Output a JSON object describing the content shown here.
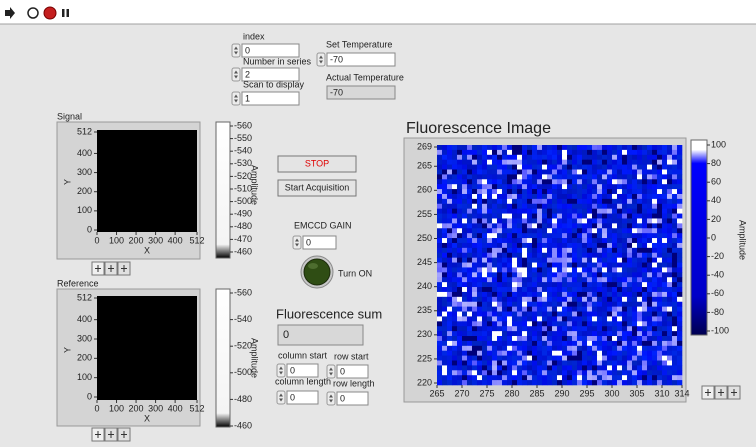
{
  "numeric_controls": [
    {
      "label": "index",
      "value": 0
    },
    {
      "label": "Number in series",
      "value": 2
    },
    {
      "label": "Scan to display",
      "value": 1
    },
    {
      "label": "Set Temperature",
      "value": -70
    },
    {
      "label": "Actual Temperature",
      "value": -70
    },
    {
      "label": "EMCCD GAIN",
      "value": 0
    },
    {
      "label": "column start",
      "value": 0
    },
    {
      "label": "row start",
      "value": 0
    },
    {
      "label": "column length",
      "value": 0
    },
    {
      "label": "row length",
      "value": 0
    }
  ],
  "fluorescence_sum": {
    "label": "Fluorescence sum",
    "value": 0
  },
  "buttons": [
    "STOP",
    "Start Acquisition"
  ],
  "led": {
    "label": "Turn ON"
  },
  "graphs": [
    {
      "label": "Signal",
      "x_label": "X",
      "y_label": "Y",
      "xlim": [
        0,
        512
      ],
      "ylim": [
        0,
        512
      ],
      "xticks": [
        0,
        100,
        200,
        300,
        400,
        512
      ],
      "yticks": [
        0,
        100,
        200,
        300,
        400,
        512
      ],
      "colorbar": {
        "label": "Amplitude",
        "lim": [
          -460,
          -560
        ],
        "ticks": [
          -560,
          -550,
          -540,
          -530,
          -520,
          -510,
          -500,
          -490,
          -480,
          -470,
          -460
        ]
      }
    },
    {
      "label": "Reference",
      "x_label": "X",
      "y_label": "Y",
      "xlim": [
        0,
        512
      ],
      "ylim": [
        0,
        512
      ],
      "xticks": [
        0,
        100,
        200,
        300,
        400,
        512
      ],
      "yticks": [
        0,
        100,
        200,
        300,
        400,
        512
      ],
      "colorbar": {
        "label": "Amplitude",
        "lim": [
          -460,
          -560
        ],
        "ticks": [
          -560,
          -540,
          -520,
          -500,
          -480,
          -460
        ]
      }
    },
    {
      "label": "Fluorescence Image",
      "xlim": [
        265,
        314
      ],
      "ylim": [
        220,
        269
      ],
      "xticks": [
        265,
        270,
        275,
        280,
        285,
        290,
        295,
        300,
        305,
        310,
        314
      ],
      "yticks": [
        220,
        225,
        230,
        235,
        240,
        245,
        250,
        255,
        260,
        265,
        269
      ],
      "colorbar": {
        "label": "Amplitude",
        "lim": [
          -100,
          100
        ],
        "ticks": [
          100,
          80,
          60,
          40,
          20,
          0,
          -20,
          -40,
          -60,
          -80,
          -100
        ]
      }
    }
  ]
}
